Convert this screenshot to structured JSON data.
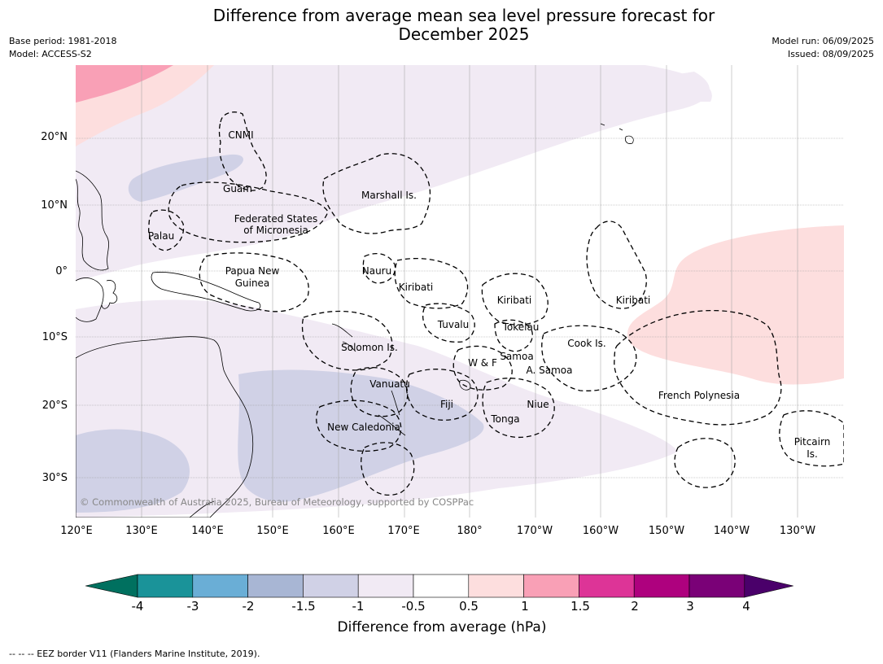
{
  "title_line1": "Difference from average mean sea level pressure forecast for",
  "title_line2": "December 2025",
  "meta_left": {
    "base_period": "Base period: 1981-2018",
    "model": "Model: ACCESS-S2"
  },
  "meta_right": {
    "model_run": "Model run: 06/09/2025",
    "issued": "Issued: 08/09/2025"
  },
  "lat_ticks": [
    "20°N",
    "10°N",
    "0°",
    "10°S",
    "20°S",
    "30°S"
  ],
  "lon_ticks": [
    "120°E",
    "130°E",
    "140°E",
    "150°E",
    "160°E",
    "170°E",
    "180°",
    "170°W",
    "160°W",
    "150°W",
    "140°W",
    "130°W"
  ],
  "places": {
    "cnmi": "CNMI",
    "guam": "Guam",
    "marshall": "Marshall Is.",
    "fsm1": "Federated States",
    "fsm2": "of Micronesia",
    "palau": "Palau",
    "png1": "Papua New",
    "png2": "Guinea",
    "nauru": "Nauru",
    "kiribati_west": "Kiribati",
    "kiribati_central": "Kiribati",
    "kiribati_east": "Kiribati",
    "tuvalu": "Tuvalu",
    "tokelau": "Tokelau",
    "solomon": "Solomon Is.",
    "wf": "W & F",
    "samoa": "Samoa",
    "asamoa": "A. Samoa",
    "cook": "Cook Is.",
    "vanuatu": "Vanuatu",
    "fiji": "Fiji",
    "niue": "Niue",
    "tonga": "Tonga",
    "new_caledonia": "New Caledonia",
    "french_polynesia": "French Polynesia",
    "pitcairn1": "Pitcairn",
    "pitcairn2": "Is."
  },
  "copyright": "© Commonwealth of Australia 2025, Bureau of Meteorology, supported by COSPPac",
  "colorbar": {
    "ticks": [
      "-4",
      "-3",
      "-2",
      "-1.5",
      "-1",
      "-0.5",
      "0.5",
      "1",
      "1.5",
      "2",
      "3",
      "4"
    ],
    "colors": [
      "#1a9399",
      "#6aaed6",
      "#a8b6d4",
      "#d0d1e6",
      "#f1eaf4",
      "#ffffff",
      "#fddede",
      "#f9a0b6",
      "#dd3497",
      "#ae017e",
      "#7a0177"
    ],
    "under_color": "#00705f",
    "over_color": "#4a006a",
    "label": "Difference from average (hPa)"
  },
  "footer": "--  --  -- EEZ border V11 (Flanders Marine Institute, 2019)."
}
